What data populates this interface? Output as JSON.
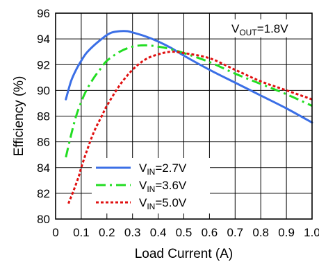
{
  "chart_data": {
    "type": "line",
    "xlabel": "Load Current (A)",
    "ylabel": "Efficiency (%)",
    "xlim": [
      0,
      1.0
    ],
    "ylim": [
      80,
      96
    ],
    "x_ticks": [
      "0",
      "0.1",
      "0.2",
      "0.3",
      "0.4",
      "0.5",
      "0.6",
      "0.7",
      "0.8",
      "0.9",
      "1.0"
    ],
    "y_ticks": [
      "80",
      "82",
      "84",
      "86",
      "88",
      "90",
      "92",
      "94",
      "96"
    ],
    "grid": true,
    "legend_position": "bottom-left",
    "annotation": {
      "main": "V",
      "sub": "OUT",
      "rest": "=1.8V"
    },
    "series": [
      {
        "name": "VIN=2.7V",
        "legend": {
          "main": "V",
          "sub": "IN",
          "rest": "=2.7V"
        },
        "color": "#3b6fe6",
        "dash": "solid",
        "x": [
          0.04,
          0.06,
          0.08,
          0.1,
          0.12,
          0.15,
          0.18,
          0.2,
          0.22,
          0.25,
          0.28,
          0.3,
          0.35,
          0.4,
          0.45,
          0.5,
          0.6,
          0.7,
          0.8,
          0.9,
          1.0
        ],
        "y": [
          89.3,
          90.7,
          91.6,
          92.3,
          92.9,
          93.5,
          94.0,
          94.3,
          94.5,
          94.6,
          94.6,
          94.5,
          94.2,
          93.8,
          93.3,
          92.7,
          91.6,
          90.6,
          89.6,
          88.6,
          87.5
        ]
      },
      {
        "name": "VIN=3.6V",
        "legend": {
          "main": "V",
          "sub": "IN",
          "rest": "=3.6V"
        },
        "color": "#22dd22",
        "dash": "dashdot",
        "x": [
          0.04,
          0.06,
          0.08,
          0.1,
          0.12,
          0.15,
          0.18,
          0.2,
          0.25,
          0.3,
          0.35,
          0.4,
          0.45,
          0.5,
          0.6,
          0.7,
          0.8,
          0.9,
          1.0
        ],
        "y": [
          84.8,
          86.5,
          88.0,
          89.1,
          90.0,
          91.0,
          91.8,
          92.3,
          93.0,
          93.4,
          93.5,
          93.4,
          93.2,
          92.9,
          92.2,
          91.3,
          90.5,
          89.7,
          88.8
        ]
      },
      {
        "name": "VIN=5.0V",
        "legend": {
          "main": "V",
          "sub": "IN",
          "rest": "=5.0V"
        },
        "color": "#e01010",
        "dash": "dotted",
        "x": [
          0.05,
          0.07,
          0.09,
          0.1,
          0.12,
          0.15,
          0.18,
          0.2,
          0.25,
          0.3,
          0.35,
          0.4,
          0.45,
          0.5,
          0.6,
          0.7,
          0.8,
          0.9,
          1.0
        ],
        "y": [
          81.2,
          82.2,
          83.3,
          84.0,
          85.2,
          86.8,
          88.0,
          88.8,
          90.4,
          91.6,
          92.4,
          92.8,
          93.0,
          92.9,
          92.5,
          91.6,
          90.7,
          90.0,
          89.3
        ]
      }
    ]
  }
}
